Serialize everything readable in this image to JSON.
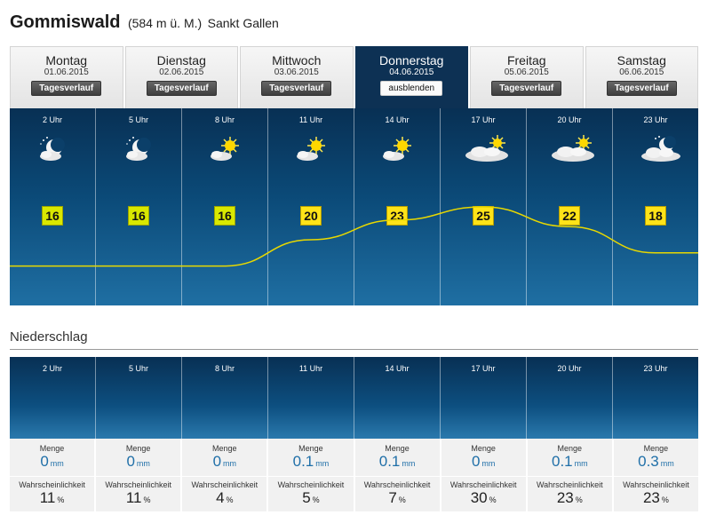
{
  "header": {
    "place": "Gommiswald",
    "altitude": "(584 m ü. M.)",
    "region": "Sankt Gallen"
  },
  "days": [
    {
      "name": "Montag",
      "date": "01.06.2015",
      "button": "Tagesverlauf",
      "active": false
    },
    {
      "name": "Dienstag",
      "date": "02.06.2015",
      "button": "Tagesverlauf",
      "active": false
    },
    {
      "name": "Mittwoch",
      "date": "03.06.2015",
      "button": "Tagesverlauf",
      "active": false
    },
    {
      "name": "Donnerstag",
      "date": "04.06.2015",
      "button": "ausblenden",
      "active": true
    },
    {
      "name": "Freitag",
      "date": "05.06.2015",
      "button": "Tagesverlauf",
      "active": false
    },
    {
      "name": "Samstag",
      "date": "06.06.2015",
      "button": "Tagesverlauf",
      "active": false
    }
  ],
  "forecast": [
    {
      "hour": "2 Uhr",
      "icon": "moon-cloud-icon",
      "temp": "16"
    },
    {
      "hour": "5 Uhr",
      "icon": "moon-cloud-icon",
      "temp": "16"
    },
    {
      "hour": "8 Uhr",
      "icon": "sun-cloud-icon",
      "temp": "16"
    },
    {
      "hour": "11 Uhr",
      "icon": "sun-cloud-icon",
      "temp": "20"
    },
    {
      "hour": "14 Uhr",
      "icon": "sun-cloud-icon",
      "temp": "23"
    },
    {
      "hour": "17 Uhr",
      "icon": "sun-big-cloud-icon",
      "temp": "25"
    },
    {
      "hour": "20 Uhr",
      "icon": "sun-big-cloud-icon",
      "temp": "22"
    },
    {
      "hour": "23 Uhr",
      "icon": "moon-big-cloud-icon",
      "temp": "18"
    }
  ],
  "precipitation": {
    "title": "Niederschlag",
    "amount_label": "Menge",
    "amount_unit": "mm",
    "prob_label": "Wahrscheinlichkeit",
    "prob_unit": "%",
    "hours": [
      {
        "hour": "2 Uhr",
        "amount": "0",
        "prob": "11"
      },
      {
        "hour": "5 Uhr",
        "amount": "0",
        "prob": "11"
      },
      {
        "hour": "8 Uhr",
        "amount": "0",
        "prob": "4"
      },
      {
        "hour": "11 Uhr",
        "amount": "0.1",
        "prob": "5"
      },
      {
        "hour": "14 Uhr",
        "amount": "0.1",
        "prob": "7"
      },
      {
        "hour": "17 Uhr",
        "amount": "0",
        "prob": "30"
      },
      {
        "hour": "20 Uhr",
        "amount": "0.1",
        "prob": "23"
      },
      {
        "hour": "23 Uhr",
        "amount": "0.3",
        "prob": "23"
      }
    ]
  },
  "colors": {
    "panel_dark": "#083054",
    "active_tab": "#0d3154",
    "temp_badge": "#ffe318",
    "temp_line": "#e8d800",
    "precip_value": "#1f6fa8"
  }
}
